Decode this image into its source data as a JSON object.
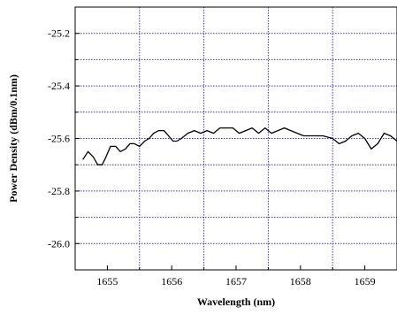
{
  "chart_data": {
    "type": "line",
    "title": "",
    "xlabel": "Wavelength (nm)",
    "ylabel": "Power Density (dBm/0.1nm)",
    "xlim": [
      1654.5,
      1659.5
    ],
    "ylim": [
      -26.1,
      -25.1
    ],
    "x_ticks": [
      1655,
      1656,
      1657,
      1658,
      1659
    ],
    "x_tick_labels": [
      "1655",
      "1656",
      "1657",
      "1658",
      "1659"
    ],
    "x_minor_ticks": [
      1654.5,
      1655.5,
      1656.5,
      1657.5,
      1658.5,
      1659.5
    ],
    "y_ticks": [
      -26.0,
      -25.8,
      -25.6,
      -25.4,
      -25.2
    ],
    "y_tick_labels": [
      "-26.0",
      "-25.8",
      "-25.6",
      "-25.4",
      "-25.2"
    ],
    "y_minor_ticks": [
      -26.1,
      -25.9,
      -25.7,
      -25.5,
      -25.3
    ],
    "grid": true,
    "grid_color": "#3333cc",
    "line_color": "#000000",
    "series": [
      {
        "x": [
          1654.62,
          1654.7,
          1654.78,
          1654.85,
          1654.92,
          1654.98,
          1655.05,
          1655.13,
          1655.2,
          1655.28,
          1655.35,
          1655.42,
          1655.5,
          1655.58,
          1655.65,
          1655.72,
          1655.8,
          1655.88,
          1655.95,
          1656.02,
          1656.08,
          1656.15,
          1656.25,
          1656.35,
          1656.45,
          1656.55,
          1656.65,
          1656.75,
          1656.85,
          1656.95,
          1657.05,
          1657.15,
          1657.25,
          1657.35,
          1657.45,
          1657.55,
          1657.65,
          1657.75,
          1657.85,
          1657.95,
          1658.05,
          1658.2,
          1658.35,
          1658.5,
          1658.6,
          1658.7,
          1658.8,
          1658.9,
          1659.0,
          1659.1,
          1659.2,
          1659.3,
          1659.4,
          1659.5
        ],
        "y": [
          -25.68,
          -25.65,
          -25.67,
          -25.7,
          -25.7,
          -25.67,
          -25.63,
          -25.63,
          -25.65,
          -25.64,
          -25.62,
          -25.62,
          -25.63,
          -25.61,
          -25.6,
          -25.58,
          -25.57,
          -25.57,
          -25.59,
          -25.61,
          -25.61,
          -25.6,
          -25.58,
          -25.57,
          -25.58,
          -25.57,
          -25.58,
          -25.56,
          -25.56,
          -25.56,
          -25.58,
          -25.57,
          -25.56,
          -25.58,
          -25.56,
          -25.58,
          -25.57,
          -25.56,
          -25.57,
          -25.58,
          -25.59,
          -25.59,
          -25.59,
          -25.6,
          -25.62,
          -25.61,
          -25.59,
          -25.58,
          -25.6,
          -25.64,
          -25.62,
          -25.58,
          -25.59,
          -25.61
        ]
      }
    ]
  }
}
